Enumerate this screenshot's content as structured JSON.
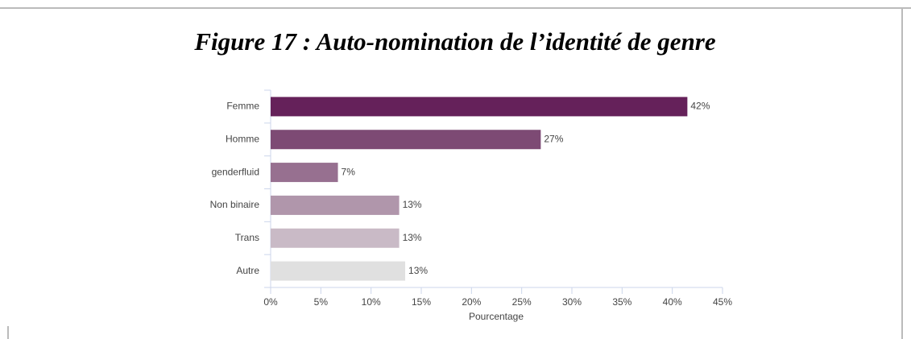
{
  "chart_data": {
    "type": "bar",
    "orientation": "horizontal",
    "title": "Figure 17 : Auto-nomination de l’identité de genre",
    "categories": [
      "Femme",
      "Homme",
      "genderfluid",
      "Non binaire",
      "Trans",
      "Autre"
    ],
    "values": [
      41.5,
      26.9,
      6.7,
      12.8,
      12.8,
      13.4
    ],
    "value_labels": [
      "42%",
      "27%",
      "7%",
      "13%",
      "13%",
      "13%"
    ],
    "colors": [
      "#65215a",
      "#7d4a74",
      "#977090",
      "#b096ab",
      "#c9bac6",
      "#e0e0e0"
    ],
    "xlabel": "Pourcentage",
    "xlim": [
      0,
      45
    ],
    "xticks": [
      {
        "value": 0,
        "label": "0%"
      },
      {
        "value": 5,
        "label": "5%"
      },
      {
        "value": 10,
        "label": "10%"
      },
      {
        "value": 15,
        "label": "15%"
      },
      {
        "value": 20,
        "label": "20%"
      },
      {
        "value": 25,
        "label": "25%"
      },
      {
        "value": 30,
        "label": "30%"
      },
      {
        "value": 35,
        "label": "35%"
      },
      {
        "value": 40,
        "label": "40%"
      },
      {
        "value": 45,
        "label": "45%"
      }
    ],
    "grid": false
  }
}
